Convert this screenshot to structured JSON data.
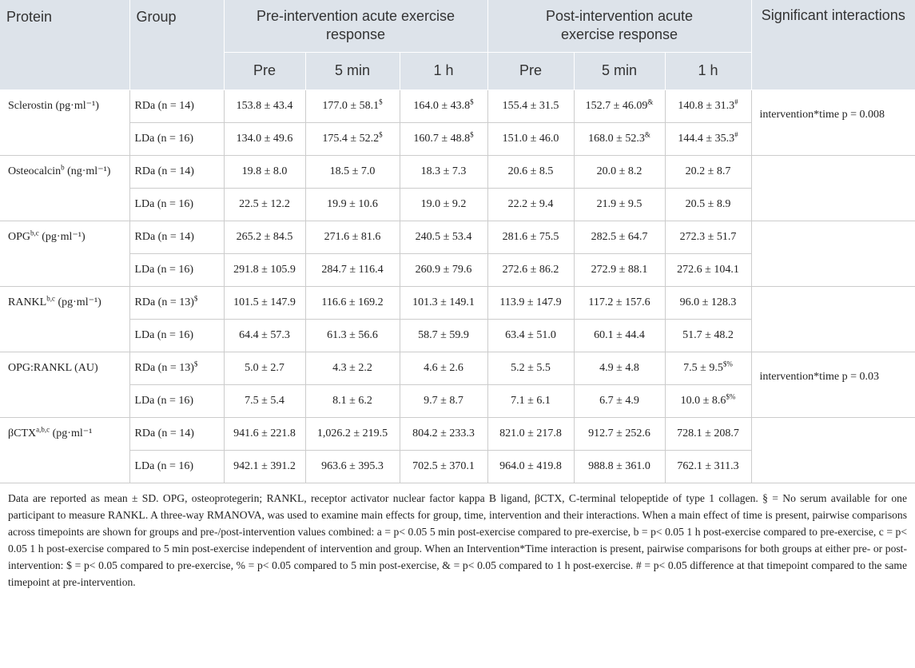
{
  "header": {
    "protein": "Protein",
    "group": "Group",
    "pre_intervention": "Pre-intervention acute exercise response",
    "post_intervention": "Post-intervention acute exercise response",
    "significant": "Significant interactions",
    "timepoints": [
      "Pre",
      "5 min",
      "1 h",
      "Pre",
      "5 min",
      "1 h"
    ]
  },
  "rows": [
    {
      "protein": {
        "name": "Sclerostin",
        "unit": "(pg·ml⁻¹)"
      },
      "interaction": "intervention*time p = 0.008",
      "groups": [
        {
          "group": "RDa (n = 14)",
          "cells": [
            "153.8 ± 43.4",
            {
              "text": "177.0 ± 58.1",
              "sup": "$"
            },
            {
              "text": "164.0 ± 43.8",
              "sup": "$"
            },
            "155.4 ± 31.5",
            {
              "text": "152.7 ± 46.09",
              "sup": "&"
            },
            {
              "text": "140.8 ± 31.3",
              "sup": "#"
            }
          ]
        },
        {
          "group": "LDa (n = 16)",
          "cells": [
            "134.0 ± 49.6",
            {
              "text": "175.4 ± 52.2",
              "sup": "$"
            },
            {
              "text": "160.7 ± 48.8",
              "sup": "$"
            },
            "151.0 ± 46.0",
            {
              "text": "168.0 ± 52.3",
              "sup": "&"
            },
            {
              "text": "144.4 ± 35.3",
              "sup": "#"
            }
          ]
        }
      ]
    },
    {
      "protein": {
        "name": "Osteocalcin",
        "sup": "b",
        "unit": "(ng·ml⁻¹)"
      },
      "groups": [
        {
          "group": "RDa (n = 14)",
          "cells": [
            "19.8 ± 8.0",
            "18.5 ± 7.0",
            "18.3 ± 7.3",
            "20.6 ± 8.5",
            "20.0 ± 8.2",
            "20.2 ± 8.7"
          ]
        },
        {
          "group": "LDa (n = 16)",
          "cells": [
            "22.5 ± 12.2",
            "19.9 ± 10.6",
            "19.0 ± 9.2",
            "22.2 ± 9.4",
            "21.9 ± 9.5",
            "20.5 ± 8.9"
          ]
        }
      ]
    },
    {
      "protein": {
        "name": "OPG",
        "sup": "b,c",
        "unit": "(pg·ml⁻¹)"
      },
      "groups": [
        {
          "group": "RDa (n = 14)",
          "cells": [
            "265.2 ± 84.5",
            "271.6 ± 81.6",
            "240.5 ± 53.4",
            "281.6 ± 75.5",
            "282.5 ± 64.7",
            "272.3 ± 51.7"
          ]
        },
        {
          "group": "LDa (n = 16)",
          "cells": [
            "291.8 ± 105.9",
            "284.7 ± 116.4",
            "260.9 ± 79.6",
            "272.6 ± 86.2",
            "272.9 ± 88.1",
            "272.6 ± 104.1"
          ]
        }
      ]
    },
    {
      "protein": {
        "name": "RANKL",
        "sup": "b,c",
        "unit": "(pg·ml⁻¹)"
      },
      "groups": [
        {
          "group": {
            "text": "RDa (n = 13)",
            "sup": "$"
          },
          "cells": [
            "101.5 ± 147.9",
            "116.6 ± 169.2",
            "101.3 ± 149.1",
            "113.9 ± 147.9",
            "117.2 ± 157.6",
            "96.0 ± 128.3"
          ]
        },
        {
          "group": "LDa (n = 16)",
          "cells": [
            "64.4 ± 57.3",
            "61.3 ± 56.6",
            "58.7 ± 59.9",
            "63.4 ± 51.0",
            "60.1 ± 44.4",
            "51.7 ± 48.2"
          ]
        }
      ]
    },
    {
      "protein": {
        "name": "OPG:RANKL",
        "unit": "(AU)"
      },
      "interaction": "intervention*time p = 0.03",
      "groups": [
        {
          "group": {
            "text": "RDa (n = 13)",
            "sup": "$"
          },
          "cells": [
            "5.0 ± 2.7",
            "4.3 ± 2.2",
            "4.6 ± 2.6",
            "5.2 ± 5.5",
            "4.9 ± 4.8",
            {
              "text": "7.5 ± 9.5",
              "sup": "$%"
            }
          ]
        },
        {
          "group": "LDa (n = 16)",
          "cells": [
            "7.5 ± 5.4",
            "8.1 ± 6.2",
            "9.7 ± 8.7",
            "7.1 ± 6.1",
            "6.7 ± 4.9",
            {
              "text": "10.0 ± 8.6",
              "sup": "$%"
            }
          ]
        }
      ]
    },
    {
      "protein": {
        "name": "βCTX",
        "sup": "a,b,c",
        "unit": "(pg·ml⁻¹"
      },
      "groups": [
        {
          "group": "RDa (n = 14)",
          "cells": [
            "941.6 ± 221.8",
            "1,026.2 ± 219.5",
            "804.2 ± 233.3",
            "821.0 ± 217.8",
            "912.7 ± 252.6",
            "728.1 ± 208.7"
          ]
        },
        {
          "group": "LDa (n = 16)",
          "cells": [
            "942.1 ± 391.2",
            "963.6 ± 395.3",
            "702.5 ± 370.1",
            "964.0 ± 419.8",
            "988.8 ± 361.0",
            "762.1 ± 311.3"
          ]
        }
      ]
    }
  ],
  "footnote": "Data are reported as mean ± SD. OPG, osteoprotegerin; RANKL, receptor activator nuclear factor kappa B ligand, βCTX, C-terminal telopeptide of type 1 collagen. § = No serum available for one participant to measure RANKL. A three-way RMANOVA, was used to examine main effects for group, time, intervention and their interactions. When a main effect of time is present, pairwise comparisons across timepoints are shown for groups and pre-/post-intervention values combined: a = p< 0.05 5 min post-exercise compared to pre-exercise, b = p< 0.05 1 h post-exercise compared to pre-exercise, c = p< 0.05 1 h post-exercise compared to 5 min post-exercise independent of intervention and group. When an Intervention*Time interaction is present, pairwise comparisons for both groups at either pre- or post-intervention: $ = p< 0.05 compared to pre-exercise, % = p< 0.05 compared to 5 min post-exercise, & = p< 0.05 compared to 1 h post-exercise. # = p< 0.05 difference at that timepoint compared to the same timepoint at pre-intervention."
}
